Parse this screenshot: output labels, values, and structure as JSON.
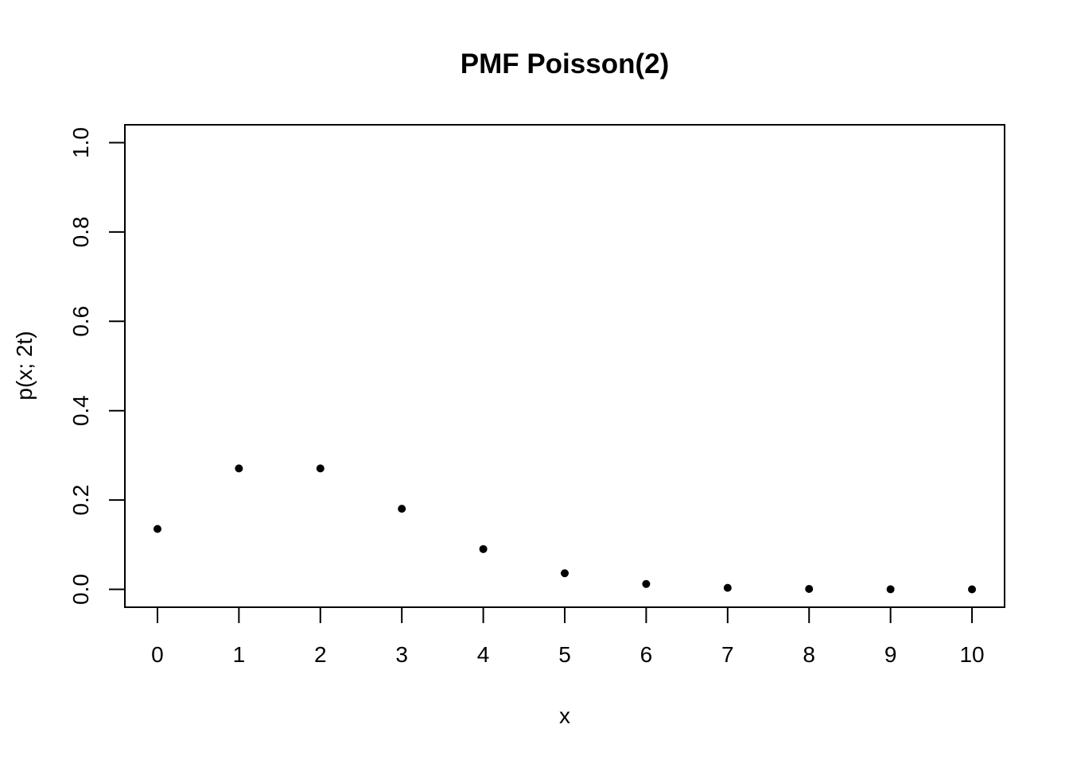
{
  "chart_data": {
    "type": "scatter",
    "title": "PMF Poisson(2)",
    "xlabel": "x",
    "ylabel": "p(x; 2t)",
    "x": [
      0,
      1,
      2,
      3,
      4,
      5,
      6,
      7,
      8,
      9,
      10
    ],
    "y": [
      0.1353,
      0.2707,
      0.2707,
      0.1804,
      0.0902,
      0.0361,
      0.012,
      0.0034,
      0.0009,
      0.0002,
      4e-05
    ],
    "xlim": [
      -0.4,
      10.4
    ],
    "ylim": [
      -0.04,
      1.04
    ],
    "xticks": [
      "0",
      "1",
      "2",
      "3",
      "4",
      "5",
      "6",
      "7",
      "8",
      "9",
      "10"
    ],
    "yticks": [
      "0.0",
      "0.2",
      "0.4",
      "0.6",
      "0.8",
      "1.0"
    ],
    "grid": false,
    "legend": "none",
    "point_color": "#000000"
  }
}
